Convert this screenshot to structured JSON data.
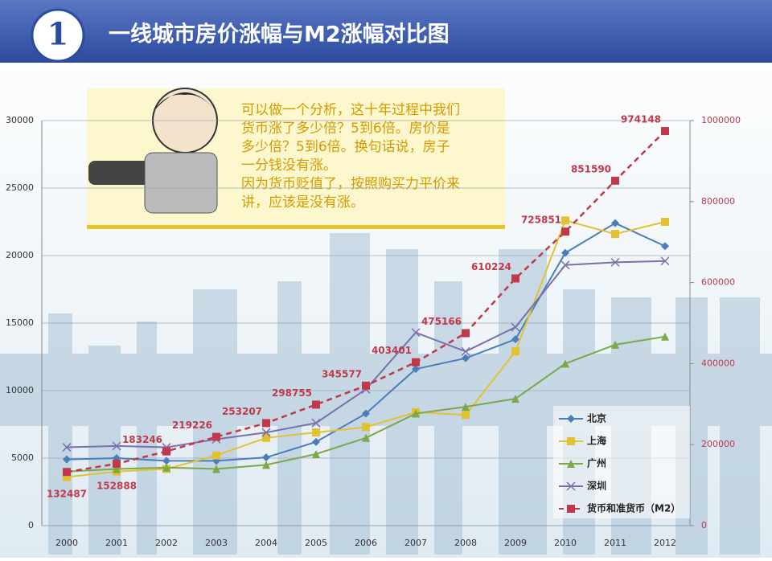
{
  "chart_data": {
    "type": "line",
    "badge": "1",
    "title": "一线城市房价涨幅与M2涨幅对比图",
    "annotation": [
      "可以做一个分析，这十年过程中我们",
      "货币涨了多少倍？5到6倍。房价是",
      "多少倍？5到6倍。换句话说，房子",
      "一分钱没有涨。",
      "因为货币贬值了，按照购买力平价来",
      "讲，应该是没有涨。"
    ],
    "categories": [
      "2000",
      "2001",
      "2002",
      "2003",
      "2004",
      "2005",
      "2006",
      "2007",
      "2008",
      "2009",
      "2010",
      "2011",
      "2012"
    ],
    "ylim": [
      0,
      30000
    ],
    "yticks": [
      0,
      5000,
      10000,
      15000,
      20000,
      25000,
      30000
    ],
    "y2lim": [
      0,
      1000000
    ],
    "y2ticks": [
      0,
      200000,
      400000,
      600000,
      800000,
      1000000
    ],
    "grid": true,
    "series": [
      {
        "name": "北京",
        "color": "#4a7ebb",
        "marker": "diamond",
        "values": [
          4900,
          5000,
          4800,
          4800,
          5050,
          6200,
          8300,
          11600,
          12400,
          13800,
          20200,
          22400,
          20700
        ]
      },
      {
        "name": "上海",
        "color": "#e2c232",
        "marker": "square",
        "values": [
          3600,
          4000,
          4200,
          5200,
          6500,
          6900,
          7300,
          8400,
          8200,
          12900,
          22600,
          21600,
          22500
        ]
      },
      {
        "name": "广州",
        "color": "#7aa84a",
        "marker": "triangle",
        "values": [
          4000,
          4200,
          4300,
          4200,
          4500,
          5300,
          6500,
          8300,
          8800,
          9400,
          12000,
          13400,
          14000
        ]
      },
      {
        "name": "深圳",
        "color": "#7b70ab",
        "marker": "x",
        "values": [
          5800,
          5900,
          5800,
          6400,
          6900,
          7600,
          10100,
          14300,
          12900,
          14700,
          19300,
          19500,
          19600
        ]
      },
      {
        "name": "货币和准货币（M2）",
        "color": "#c0394b",
        "marker": "square",
        "dashed": true,
        "axis": "y2",
        "data_labels": true,
        "values": [
          132487,
          152888,
          183246,
          219226,
          253207,
          298755,
          345577,
          403401,
          475166,
          610224,
          725851,
          851590,
          974148
        ]
      }
    ]
  }
}
